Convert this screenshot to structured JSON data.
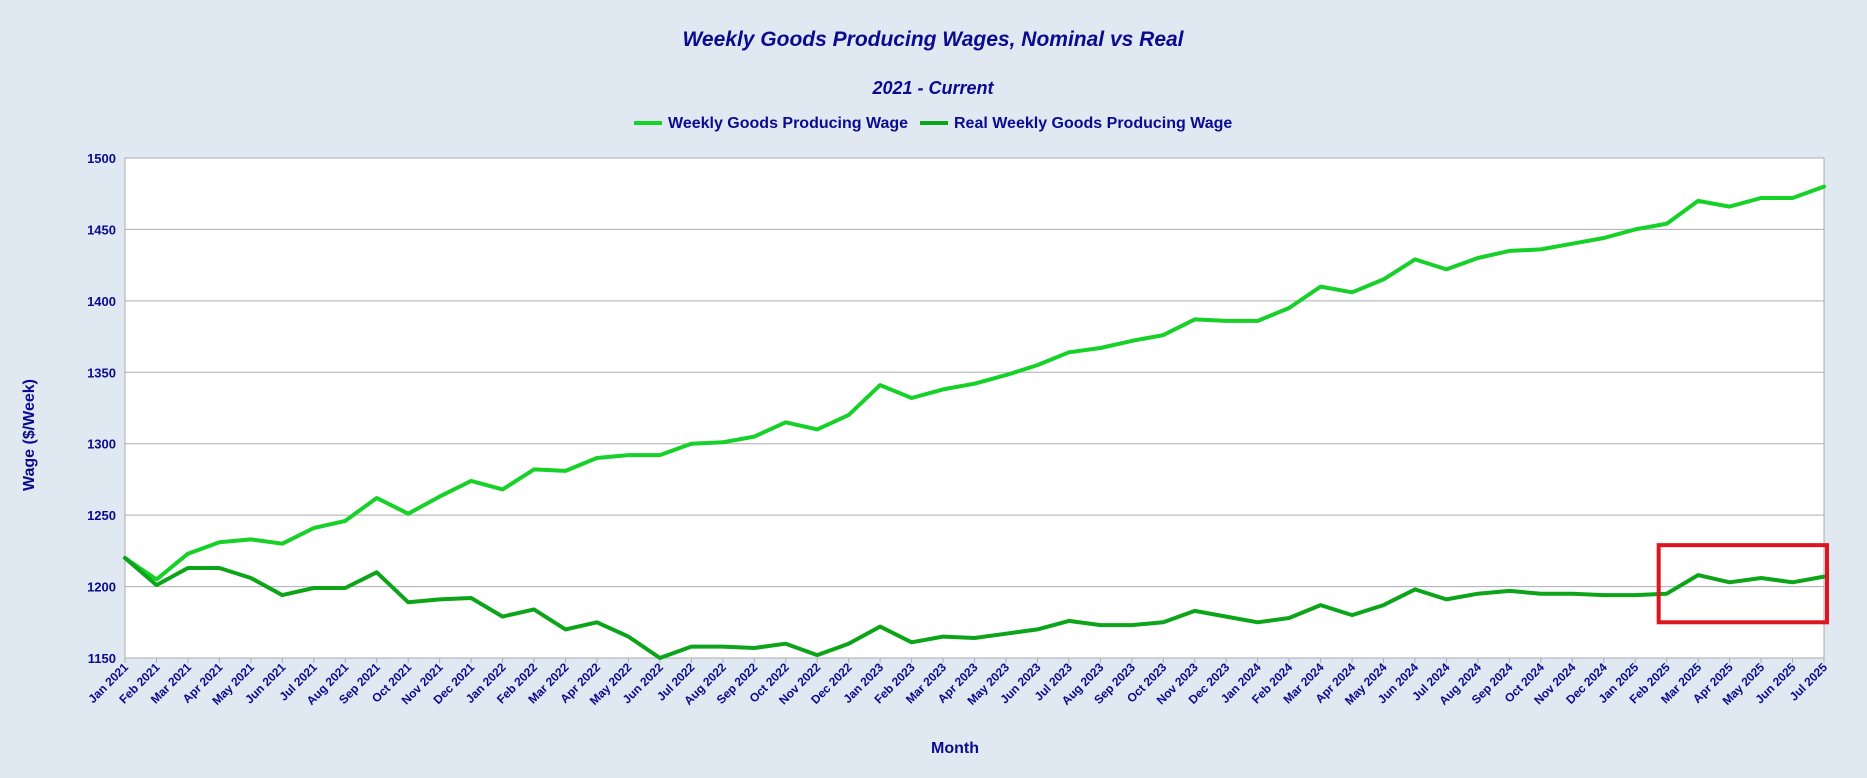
{
  "colors": {
    "background": "#e0e8f1",
    "plot_background": "#ffffff",
    "text": "#0b0b8f",
    "grid": "#a9adb3",
    "nominal": "#16d127",
    "real": "#0ca51a",
    "highlight": "#e0141e"
  },
  "chart_data": {
    "type": "line",
    "title": "Weekly Goods Producing Wages, Nominal vs Real",
    "subtitle": "2021 - Current",
    "xlabel": "Month",
    "ylabel": "Wage ($/Week)",
    "ylim": [
      1150,
      1500
    ],
    "yticks": [
      1150,
      1200,
      1250,
      1300,
      1350,
      1400,
      1450,
      1500
    ],
    "grid": true,
    "legend_position": "top-center",
    "categories": [
      "Jan 2021",
      "Feb 2021",
      "Mar 2021",
      "Apr 2021",
      "May 2021",
      "Jun 2021",
      "Jul 2021",
      "Aug 2021",
      "Sep 2021",
      "Oct 2021",
      "Nov 2021",
      "Dec 2021",
      "Jan 2022",
      "Feb 2022",
      "Mar 2022",
      "Apr 2022",
      "May 2022",
      "Jun 2022",
      "Jul 2022",
      "Aug 2022",
      "Sep 2022",
      "Oct 2022",
      "Nov 2022",
      "Dec 2022",
      "Jan 2023",
      "Feb 2023",
      "Mar 2023",
      "Apr 2023",
      "May 2023",
      "Jun 2023",
      "Jul 2023",
      "Aug 2023",
      "Sep 2023",
      "Oct 2023",
      "Nov 2023",
      "Dec 2023",
      "Jan 2024",
      "Feb 2024",
      "Mar 2024",
      "Apr 2024",
      "May 2024",
      "Jun 2024",
      "Jul 2024",
      "Aug 2024",
      "Sep 2024",
      "Oct 2024",
      "Nov 2024",
      "Dec 2024",
      "Jan 2025",
      "Feb 2025",
      "Mar 2025",
      "Apr 2025",
      "May 2025",
      "Jun 2025",
      "Jul 2025"
    ],
    "series": [
      {
        "name": "Weekly Goods Producing Wage",
        "values": [
          1220,
          1205,
          1223,
          1231,
          1233,
          1230,
          1241,
          1246,
          1262,
          1251,
          1263,
          1274,
          1268,
          1282,
          1281,
          1290,
          1292,
          1292,
          1300,
          1301,
          1305,
          1315,
          1310,
          1320,
          1341,
          1332,
          1338,
          1342,
          1348,
          1355,
          1364,
          1367,
          1372,
          1376,
          1387,
          1386,
          1386,
          1395,
          1410,
          1406,
          1415,
          1429,
          1422,
          1430,
          1435,
          1436,
          1440,
          1444,
          1450,
          1454,
          1470,
          1466,
          1472,
          1472,
          1480
        ]
      },
      {
        "name": "Real Weekly Goods Producing Wage",
        "values": [
          1220,
          1201,
          1213,
          1213,
          1206,
          1194,
          1199,
          1199,
          1210,
          1189,
          1191,
          1192,
          1179,
          1184,
          1170,
          1175,
          1165,
          1150,
          1158,
          1158,
          1157,
          1160,
          1152,
          1160,
          1172,
          1161,
          1165,
          1164,
          1167,
          1170,
          1176,
          1173,
          1173,
          1175,
          1183,
          1179,
          1175,
          1178,
          1187,
          1180,
          1187,
          1198,
          1191,
          1195,
          1197,
          1195,
          1195,
          1194,
          1194,
          1195,
          1208,
          1203,
          1206,
          1203,
          1207
        ]
      }
    ],
    "highlight_box": {
      "from": "Feb 2025",
      "to": "Jul 2025",
      "y_range": [
        1175,
        1229
      ]
    }
  }
}
